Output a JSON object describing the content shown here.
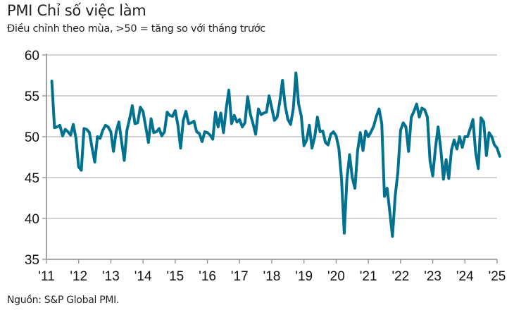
{
  "chart_data": {
    "type": "line",
    "title": "PMI Chỉ số việc làm",
    "subtitle": "Điều chỉnh theo mùa, >50 = tăng so với tháng trước",
    "source": "Nguồn: S&P Global PMI.",
    "xlabel": "",
    "ylabel": "",
    "ylim": [
      35,
      60
    ],
    "yticks": [
      35,
      40,
      45,
      50,
      55,
      60
    ],
    "ytick_labels": [
      "35",
      "40",
      "45",
      "50",
      "55",
      "60"
    ],
    "xlim": [
      2011,
      2025
    ],
    "xticks": [
      2011,
      2012,
      2013,
      2014,
      2015,
      2016,
      2017,
      2018,
      2019,
      2020,
      2021,
      2022,
      2023,
      2024,
      2025
    ],
    "xtick_labels": [
      "'11",
      "'12",
      "'13",
      "'14",
      "'15",
      "'16",
      "'17",
      "'18",
      "'19",
      "'20",
      "'21",
      "'22",
      "'23",
      "'24",
      "'25"
    ],
    "grid": "horizontal",
    "line_color": "#00728f",
    "series": [
      {
        "name": "PMI Chỉ số việc làm",
        "start": "2011-03",
        "frequency": "monthly",
        "values": [
          56.8,
          51.1,
          51.2,
          51.4,
          50.1,
          50.9,
          50.6,
          50.2,
          51.5,
          49.8,
          46.3,
          45.9,
          51.0,
          50.9,
          50.5,
          48.6,
          46.9,
          50.0,
          49.8,
          50.8,
          51.4,
          51.2,
          50.6,
          48.2,
          50.6,
          51.8,
          49.4,
          47.1,
          50.8,
          52.2,
          53.8,
          51.6,
          51.7,
          53.6,
          53.1,
          51.2,
          49.3,
          52.2,
          50.5,
          50.6,
          51.0,
          50.1,
          50.6,
          53.0,
          52.6,
          52.5,
          53.2,
          51.4,
          48.6,
          52.0,
          53.1,
          51.6,
          51.7,
          51.9,
          50.6,
          50.4,
          49.4,
          50.6,
          50.5,
          50.2,
          49.7,
          53.0,
          51.2,
          52.9,
          50.5,
          53.4,
          55.7,
          51.6,
          52.6,
          51.8,
          52.1,
          51.2,
          51.7,
          54.9,
          52.8,
          51.6,
          50.3,
          53.4,
          52.7,
          52.9,
          53.0,
          55.0,
          53.5,
          52.0,
          52.4,
          54.3,
          56.9,
          53.8,
          52.1,
          51.5,
          53.4,
          57.8,
          54.0,
          52.5,
          48.9,
          49.6,
          51.4,
          48.6,
          50.0,
          52.4,
          50.6,
          50.7,
          49.3,
          49.0,
          50.3,
          50.6,
          50.1,
          48.6,
          44.9,
          38.2,
          44.8,
          47.8,
          45.0,
          43.7,
          48.3,
          50.5,
          48.3,
          50.7,
          50.0,
          50.6,
          51.3,
          52.5,
          53.4,
          51.6,
          42.7,
          43.7,
          40.8,
          37.8,
          42.7,
          45.6,
          50.8,
          51.7,
          51.2,
          48.2,
          52.4,
          53.1,
          54.0,
          52.4,
          53.5,
          53.3,
          52.4,
          47.0,
          45.2,
          48.6,
          51.2,
          48.5,
          44.8,
          47.2,
          44.9,
          48.4,
          49.6,
          48.5,
          50.0,
          48.7,
          50.0,
          50.0,
          51.0,
          52.1,
          48.1,
          46.1,
          52.3,
          51.8,
          47.7,
          50.5,
          50.0,
          49.0,
          48.6,
          47.6
        ]
      }
    ]
  }
}
